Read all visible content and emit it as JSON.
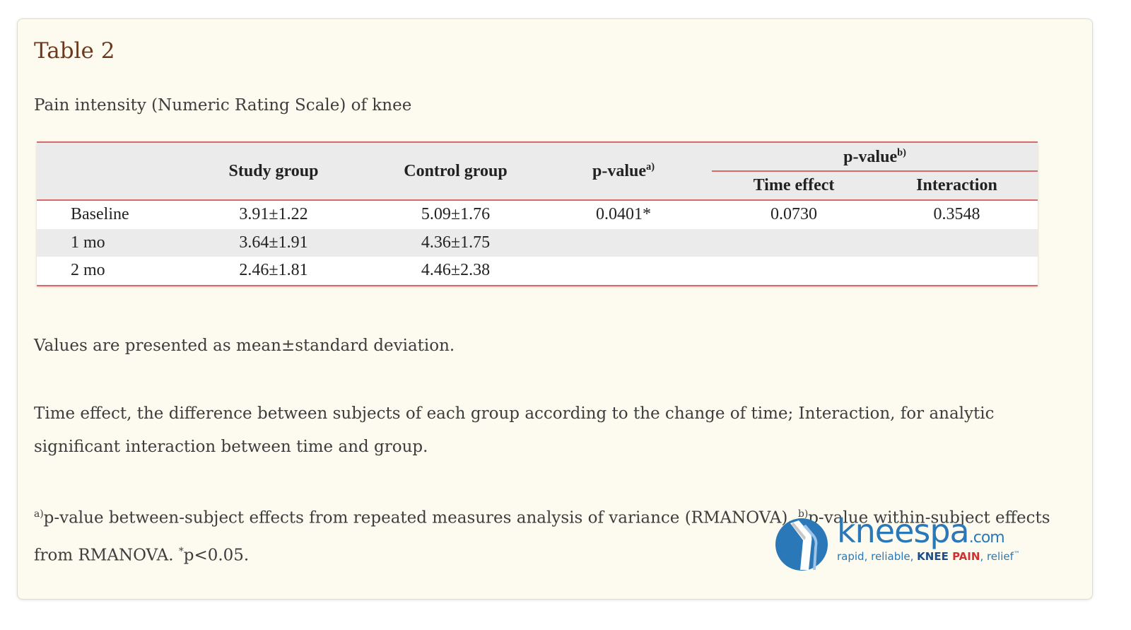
{
  "title": "Table 2",
  "caption": "Pain intensity (Numeric Rating Scale) of knee",
  "table": {
    "headers": {
      "col1": "",
      "study": "Study group",
      "control": "Control group",
      "pvalue_a": "p-value",
      "pvalue_a_sup": "a)",
      "pvalue_b": "p-value",
      "pvalue_b_sup": "b)",
      "time_effect": "Time effect",
      "interaction": "Interaction"
    },
    "rows": [
      {
        "label": "Baseline",
        "study": "3.91±1.22",
        "control": "5.09±1.76",
        "pvalue": "0.0401*",
        "time_effect": "0.0730",
        "interaction": "0.3548"
      },
      {
        "label": "1 mo",
        "study": "3.64±1.91",
        "control": "4.36±1.75",
        "pvalue": "",
        "time_effect": "",
        "interaction": ""
      },
      {
        "label": "2 mo",
        "study": "2.46±1.81",
        "control": "4.46±2.38",
        "pvalue": "",
        "time_effect": "",
        "interaction": ""
      }
    ]
  },
  "notes": {
    "values_note": "Values are presented as mean±standard deviation.",
    "time_effect_note": "Time effect, the difference between subjects of each group according to the change of time; Interaction, for analytic significant interaction between time and group.",
    "footnote_a_sup": "a)",
    "footnote_a": "p-value between-subject effects from repeated measures analysis of variance (RMANOVA). ",
    "footnote_b_sup": "b)",
    "footnote_b": "p-value within-subject effects from RMANOVA. ",
    "footnote_star_sup": "*",
    "footnote_star": "p<0.05."
  },
  "logo": {
    "name": "kneespa",
    "suffix": ".com",
    "tagline_1": "rapid, reliable, ",
    "tagline_knee": "KNEE ",
    "tagline_pain": "PAIN",
    "tagline_2": ", relief",
    "tagline_tm": "™",
    "colors": {
      "blue": "#2a78b8",
      "dark_blue": "#1b4f8a",
      "red": "#d23030"
    }
  }
}
